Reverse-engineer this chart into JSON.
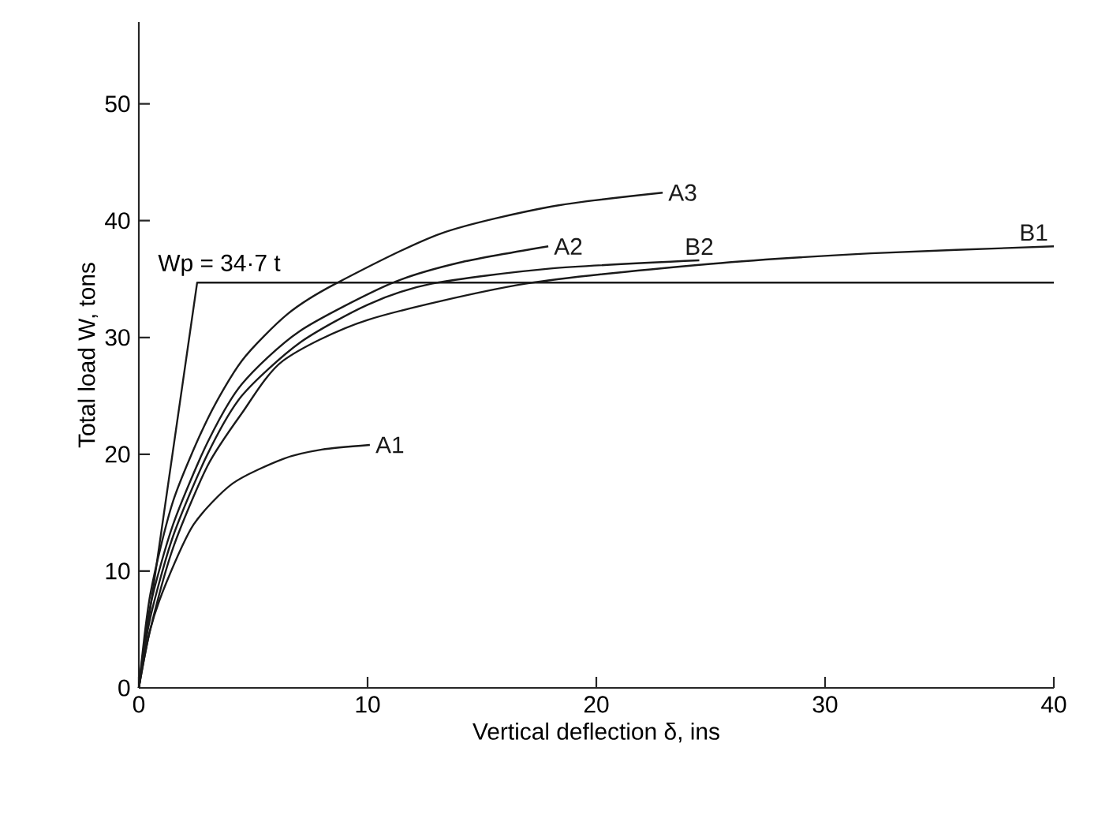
{
  "chart_data": {
    "type": "line",
    "xlabel": "Vertical deflection δ, ins",
    "ylabel": "Total load W, tons",
    "xlim": [
      0,
      40
    ],
    "ylim": [
      0,
      57
    ],
    "xticks": [
      0,
      10,
      20,
      30,
      40
    ],
    "yticks": [
      0,
      10,
      20,
      30,
      40,
      50
    ],
    "grid": false,
    "marker": "none",
    "line_style": "solid",
    "series": [
      {
        "name": "A1",
        "color": "#1a1a1a",
        "x": [
          0,
          0.5,
          1.2,
          2.4,
          4.1,
          6.3,
          8,
          10.1
        ],
        "values": [
          0,
          5,
          9,
          14,
          17.5,
          19.6,
          20.4,
          20.8
        ]
      },
      {
        "name": "A3",
        "color": "#1a1a1a",
        "x": [
          0,
          0.5,
          1.5,
          3,
          4.5,
          6.5,
          8.6,
          13.2,
          18,
          22.9
        ],
        "values": [
          0,
          8,
          16,
          23,
          28,
          32,
          34.6,
          38.9,
          41.2,
          42.4
        ]
      },
      {
        "name": "A2",
        "color": "#1a1a1a",
        "x": [
          0,
          0.5,
          1.5,
          3,
          4.5,
          7,
          11,
          14,
          17.9
        ],
        "values": [
          0,
          7,
          14,
          21,
          26,
          30.5,
          34.6,
          36.4,
          37.8
        ]
      },
      {
        "name": "B2",
        "color": "#1a1a1a",
        "x": [
          0,
          0.5,
          1.5,
          3,
          4.5,
          7,
          10,
          12.8,
          18,
          24.5
        ],
        "values": [
          0,
          6,
          13,
          20,
          25,
          29.5,
          32.8,
          34.6,
          35.9,
          36.6
        ]
      },
      {
        "name": "B1",
        "color": "#1a1a1a",
        "x": [
          0,
          0.5,
          1.5,
          3,
          4.5,
          6.3,
          10,
          16.9,
          25,
          32,
          40
        ],
        "values": [
          0,
          5,
          12,
          19,
          23.5,
          28,
          31.5,
          34.6,
          36.3,
          37.2,
          37.8
        ]
      },
      {
        "color": "#1a1a1a",
        "x": [
          0,
          2.55,
          40
        ],
        "values": [
          0,
          34.7,
          34.7
        ]
      }
    ],
    "annotations": [
      {
        "text": "Wp = 34·7 t",
        "x": 2.55,
        "y": 34.7
      }
    ]
  }
}
